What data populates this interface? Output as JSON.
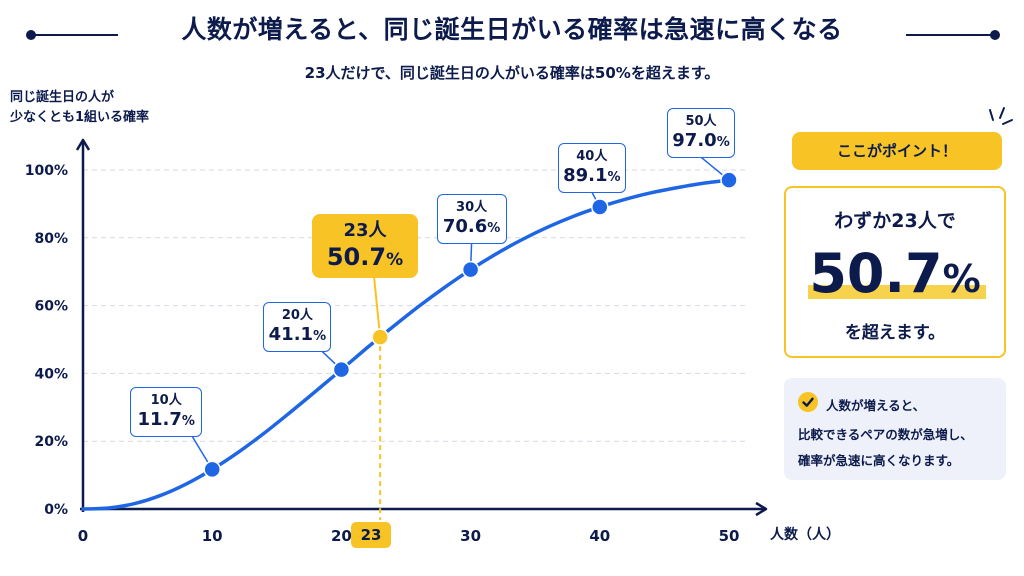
{
  "title": "人数が増えると、同じ誕生日がいる確率は急速に高くなる",
  "subtitle": "23人だけで、同じ誕生日の人がいる確率は50%を超えます。",
  "colors": {
    "navy": "#0d1b4c",
    "blue": "#1f66e5",
    "yellow": "#f7c325",
    "grid": "#d6d9e2"
  },
  "chart_data": {
    "type": "line",
    "ylabel": "同じ誕生日の人が\n少なくとも1組いる確率",
    "xlabel": "人数（人）",
    "xlim": [
      0,
      50
    ],
    "ylim": [
      0,
      100
    ],
    "x_ticks": [
      "0",
      "10",
      "20",
      "23",
      "30",
      "40",
      "50"
    ],
    "y_ticks": [
      "0%",
      "20%",
      "40%",
      "60%",
      "80%",
      "100%"
    ],
    "grid": "horizontal dashed",
    "curve": [
      [
        0,
        0
      ],
      [
        2,
        0.3
      ],
      [
        4,
        1.6
      ],
      [
        6,
        4.0
      ],
      [
        8,
        7.4
      ],
      [
        10,
        11.7
      ],
      [
        12,
        16.7
      ],
      [
        14,
        22.3
      ],
      [
        16,
        28.4
      ],
      [
        18,
        34.7
      ],
      [
        20,
        41.1
      ],
      [
        22,
        47.6
      ],
      [
        23,
        50.7
      ],
      [
        24,
        53.8
      ],
      [
        26,
        59.8
      ],
      [
        28,
        65.4
      ],
      [
        30,
        70.6
      ],
      [
        32,
        75.3
      ],
      [
        34,
        79.5
      ],
      [
        36,
        83.2
      ],
      [
        38,
        86.4
      ],
      [
        40,
        89.1
      ],
      [
        42,
        91.4
      ],
      [
        44,
        93.3
      ],
      [
        46,
        94.8
      ],
      [
        48,
        96.1
      ],
      [
        50,
        97.0
      ]
    ],
    "points": [
      {
        "x": 10,
        "y": 11.7,
        "label_n": "10人",
        "label_v": "11.7",
        "pct": "%"
      },
      {
        "x": 20,
        "y": 41.1,
        "label_n": "20人",
        "label_v": "41.1",
        "pct": "%"
      },
      {
        "x": 30,
        "y": 70.6,
        "label_n": "30人",
        "label_v": "70.6",
        "pct": "%"
      },
      {
        "x": 40,
        "y": 89.1,
        "label_n": "40人",
        "label_v": "89.1",
        "pct": "%"
      },
      {
        "x": 50,
        "y": 97.0,
        "label_n": "50人",
        "label_v": "97.0",
        "pct": "%"
      }
    ],
    "highlight": {
      "x": 23,
      "y": 50.7,
      "label_n": "23人",
      "label_v": "50.7",
      "pct": "%",
      "x_badge": "23"
    }
  },
  "point_panel": {
    "badge": "ここがポイント！",
    "line1": "わずか23人で",
    "big_value": "50.7",
    "big_pct": "%",
    "line3": "を超えます。"
  },
  "note": {
    "line1": "人数が増えると、",
    "line2": "比較できるペアの数が急増し、",
    "line3": "確率が急速に高くなります。"
  }
}
